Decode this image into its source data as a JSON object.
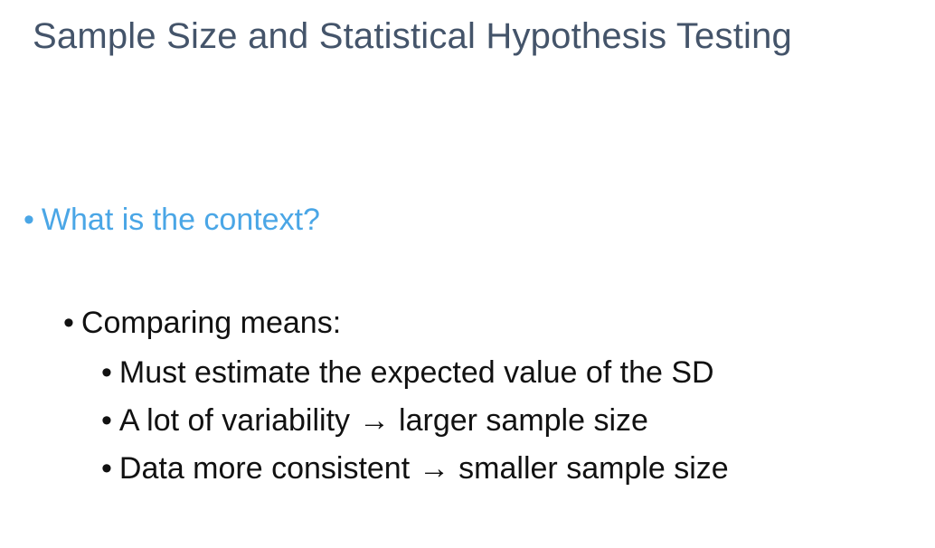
{
  "slide": {
    "title": "Sample Size and Statistical Hypothesis Testing",
    "bullet_glyph": "•",
    "arrow_glyph": "→",
    "level1": {
      "text": "What is the context?",
      "color": "#4aa6e6"
    },
    "level2": {
      "text": "Comparing means:"
    },
    "level3": [
      {
        "text": "Must estimate the expected value of the SD"
      },
      {
        "before": "A lot of variability",
        "after": "larger sample size"
      },
      {
        "before": "Data more consistent",
        "after": "smaller sample size"
      }
    ],
    "title_color": "#44546a"
  }
}
